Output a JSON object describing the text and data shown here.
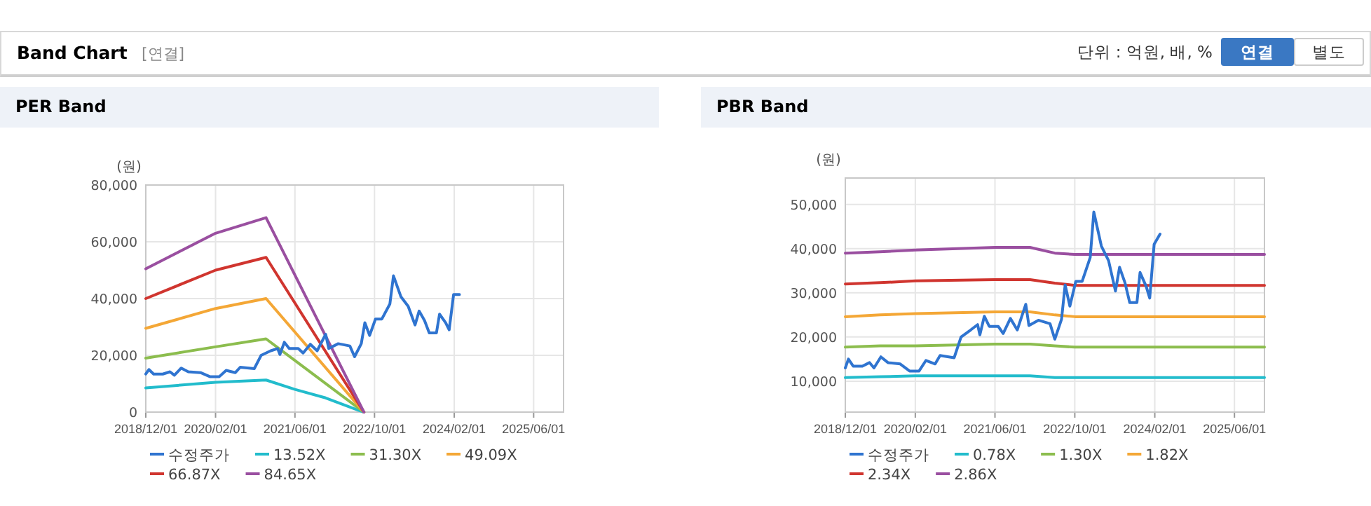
{
  "chart_data": [
    {
      "type": "line",
      "title": "PER Band",
      "ylabel": "(원)",
      "grid": true,
      "legend": "bottom",
      "marker": "none",
      "line_style": "solid",
      "annotations": [
        "Band Chart",
        "[연결]",
        "단위 : 억원, 배, %",
        "연결",
        "별도"
      ],
      "xlim": [
        "2018-12-01",
        "2025-12-01"
      ],
      "ylim": [
        0,
        80000
      ],
      "xticks": [
        {
          "value": "2018-12-01",
          "label": "2018/12/01"
        },
        {
          "value": "2020-02-01",
          "label": "2020/02/01"
        },
        {
          "value": "2021-06-01",
          "label": "2021/06/01"
        },
        {
          "value": "2022-10-01",
          "label": "2022/10/01"
        },
        {
          "value": "2024-02-01",
          "label": "2024/02/01"
        },
        {
          "value": "2025-06-01",
          "label": "2025/06/01"
        }
      ],
      "yticks": [
        {
          "value": 0,
          "label": "0"
        },
        {
          "value": 20000,
          "label": "20,000"
        },
        {
          "value": 40000,
          "label": "40,000"
        },
        {
          "value": 60000,
          "label": "60,000"
        },
        {
          "value": 80000,
          "label": "80,000"
        }
      ],
      "series": [
        {
          "name": "수정주가",
          "color": "#2f74d0",
          "x": [
            "2018-12-01",
            "2018-12-20",
            "2019-01-18",
            "2019-03-15",
            "2019-04-28",
            "2019-05-25",
            "2019-07-06",
            "2019-08-18",
            "2019-11-01",
            "2019-12-28",
            "2020-02-24",
            "2020-04-06",
            "2020-06-01",
            "2020-07-01",
            "2020-09-25",
            "2020-11-06",
            "2021-01-04",
            "2021-02-15",
            "2021-03-01",
            "2021-03-28",
            "2021-04-27",
            "2021-06-21",
            "2021-07-21",
            "2021-09-03",
            "2021-10-15",
            "2021-12-06",
            "2021-12-25",
            "2022-02-21",
            "2022-05-03",
            "2022-06-01",
            "2022-07-12",
            "2022-08-03",
            "2022-09-01",
            "2022-10-07",
            "2022-11-15",
            "2023-01-03",
            "2023-01-25",
            "2023-03-12",
            "2023-04-25",
            "2023-06-06",
            "2023-07-01",
            "2023-08-03",
            "2023-09-01",
            "2023-10-15",
            "2023-11-03",
            "2023-12-10",
            "2024-01-01",
            "2024-01-28",
            "2024-03-04"
          ],
          "values": [
            13400,
            15000,
            13400,
            13400,
            14200,
            13000,
            15500,
            14200,
            13900,
            12500,
            12500,
            14700,
            13900,
            15800,
            15300,
            20000,
            21600,
            22400,
            20300,
            24600,
            22400,
            22400,
            20800,
            23900,
            21600,
            27400,
            22400,
            24100,
            23300,
            19500,
            24100,
            31500,
            27000,
            32800,
            32800,
            38100,
            48000,
            40600,
            37300,
            30700,
            35600,
            32300,
            27900,
            27900,
            34500,
            31500,
            29000,
            41400,
            41400
          ]
        },
        {
          "name": "13.52X",
          "color": "#22bccc",
          "x": [
            "2018-12-01",
            "2020-02-01",
            "2020-12-06",
            "2021-06-01",
            "2021-12-06",
            "2022-05-15",
            "2022-07-28"
          ],
          "values": [
            8500,
            10500,
            11300,
            8000,
            5000,
            1500,
            0
          ]
        },
        {
          "name": "31.30X",
          "color": "#8cbd4e",
          "x": [
            "2018-12-01",
            "2020-02-01",
            "2020-12-06",
            "2022-07-28"
          ],
          "values": [
            19000,
            23000,
            25800,
            0
          ]
        },
        {
          "name": "49.09X",
          "color": "#f4a736",
          "x": [
            "2018-12-01",
            "2020-02-01",
            "2020-12-06",
            "2022-07-28"
          ],
          "values": [
            29500,
            36500,
            40000,
            0
          ]
        },
        {
          "name": "66.87X",
          "color": "#d0352f",
          "x": [
            "2018-12-01",
            "2020-02-01",
            "2020-12-06",
            "2022-07-28"
          ],
          "values": [
            40000,
            50000,
            54500,
            0
          ]
        },
        {
          "name": "84.65X",
          "color": "#9a4fa0",
          "x": [
            "2018-12-01",
            "2020-02-01",
            "2020-12-06",
            "2022-07-28"
          ],
          "values": [
            50500,
            63000,
            68500,
            0
          ]
        }
      ]
    },
    {
      "type": "line",
      "title": "PBR Band",
      "ylabel": "(원)",
      "grid": true,
      "legend": "bottom",
      "marker": "none",
      "line_style": "solid",
      "xlim": [
        "2018-12-01",
        "2025-12-01"
      ],
      "ylim": [
        3000,
        56000
      ],
      "xticks": [
        {
          "value": "2018-12-01",
          "label": "2018/12/01"
        },
        {
          "value": "2020-02-01",
          "label": "2020/02/01"
        },
        {
          "value": "2021-06-01",
          "label": "2021/06/01"
        },
        {
          "value": "2022-10-01",
          "label": "2022/10/01"
        },
        {
          "value": "2024-02-01",
          "label": "2024/02/01"
        },
        {
          "value": "2025-06-01",
          "label": "2025/06/01"
        }
      ],
      "yticks": [
        {
          "value": 10000,
          "label": "10,000"
        },
        {
          "value": 20000,
          "label": "20,000"
        },
        {
          "value": 30000,
          "label": "30,000"
        },
        {
          "value": 40000,
          "label": "40,000"
        },
        {
          "value": 50000,
          "label": "50,000"
        }
      ],
      "series": [
        {
          "name": "수정주가",
          "color": "#2f74d0",
          "x": [
            "2018-12-01",
            "2018-12-20",
            "2019-01-18",
            "2019-03-15",
            "2019-04-28",
            "2019-05-25",
            "2019-07-06",
            "2019-08-18",
            "2019-11-01",
            "2019-12-28",
            "2020-02-24",
            "2020-04-06",
            "2020-06-01",
            "2020-07-01",
            "2020-09-25",
            "2020-11-06",
            "2021-01-04",
            "2021-02-15",
            "2021-03-01",
            "2021-03-28",
            "2021-04-27",
            "2021-06-21",
            "2021-07-21",
            "2021-09-03",
            "2021-10-15",
            "2021-12-06",
            "2021-12-25",
            "2022-02-21",
            "2022-05-03",
            "2022-06-01",
            "2022-07-12",
            "2022-08-03",
            "2022-09-01",
            "2022-10-07",
            "2022-11-15",
            "2023-01-03",
            "2023-01-25",
            "2023-03-12",
            "2023-04-25",
            "2023-06-06",
            "2023-07-01",
            "2023-08-03",
            "2023-09-01",
            "2023-10-15",
            "2023-11-03",
            "2023-12-10",
            "2024-01-01",
            "2024-01-28",
            "2024-03-04"
          ],
          "values": [
            13000,
            15000,
            13400,
            13400,
            14200,
            13000,
            15500,
            14200,
            13900,
            12300,
            12300,
            14700,
            13900,
            15800,
            15300,
            20000,
            21600,
            22800,
            20500,
            24700,
            22400,
            22400,
            20800,
            24200,
            21600,
            27400,
            22600,
            23800,
            23000,
            19500,
            24000,
            31800,
            27000,
            32600,
            32600,
            38000,
            48300,
            40600,
            37300,
            30400,
            35800,
            32300,
            27800,
            27800,
            34600,
            31500,
            28800,
            41000,
            43300
          ]
        },
        {
          "name": "0.78X",
          "color": "#22bccc",
          "x": [
            "2018-12-01",
            "2019-07-01",
            "2020-02-01",
            "2021-06-01",
            "2022-01-01",
            "2022-06-01",
            "2022-10-01",
            "2025-12-01"
          ],
          "values": [
            10800,
            11000,
            11200,
            11200,
            11200,
            10800,
            10800,
            10800
          ]
        },
        {
          "name": "1.30X",
          "color": "#8cbd4e",
          "x": [
            "2018-12-01",
            "2019-07-01",
            "2020-02-01",
            "2021-06-01",
            "2022-01-01",
            "2022-06-01",
            "2022-10-01",
            "2025-12-01"
          ],
          "values": [
            17700,
            18000,
            18000,
            18400,
            18400,
            18000,
            17700,
            17700
          ]
        },
        {
          "name": "1.82X",
          "color": "#f4a736",
          "x": [
            "2018-12-01",
            "2019-07-01",
            "2020-02-01",
            "2021-06-01",
            "2022-01-01",
            "2022-06-01",
            "2022-10-01",
            "2025-12-01"
          ],
          "values": [
            24600,
            25000,
            25300,
            25700,
            25700,
            25000,
            24600,
            24600
          ]
        },
        {
          "name": "2.34X",
          "color": "#d0352f",
          "x": [
            "2018-12-01",
            "2019-07-01",
            "2020-02-01",
            "2021-06-01",
            "2022-01-01",
            "2022-06-01",
            "2022-10-01",
            "2025-12-01"
          ],
          "values": [
            32000,
            32300,
            32700,
            33000,
            33000,
            32200,
            31700,
            31700
          ]
        },
        {
          "name": "2.86X",
          "color": "#9a4fa0",
          "x": [
            "2018-12-01",
            "2019-07-01",
            "2020-02-01",
            "2021-06-01",
            "2022-01-01",
            "2022-06-01",
            "2022-10-01",
            "2025-12-01"
          ],
          "values": [
            39000,
            39300,
            39700,
            40300,
            40300,
            39000,
            38700,
            38700
          ]
        }
      ]
    }
  ]
}
